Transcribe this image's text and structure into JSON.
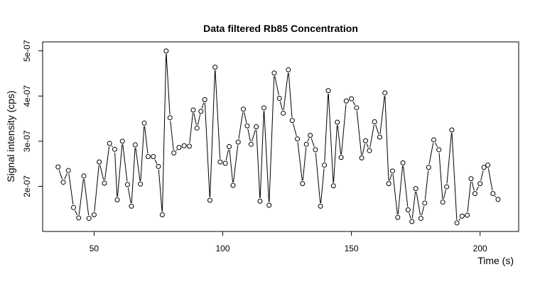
{
  "chart_data": {
    "type": "line",
    "title": "Data filtered Rb85 Concentration",
    "xlabel": "Time (s)",
    "ylabel": "Signal intensity (cps)",
    "xlim": [
      30,
      215
    ],
    "ylim": [
      1e-07,
      5.2e-07
    ],
    "x_ticks": [
      50,
      100,
      150,
      200
    ],
    "x_tick_labels": [
      "50",
      "100",
      "150",
      "200"
    ],
    "y_ticks": [
      2e-07,
      3e-07,
      4e-07,
      5e-07
    ],
    "y_tick_labels": [
      "2e-07",
      "3e-07",
      "4e-07",
      "5e-07"
    ],
    "grid": false,
    "series": [
      {
        "marker": "open-circle",
        "line": "segments-with-gaps",
        "points": [
          [
            36.0,
            2.43e-07
          ],
          [
            38.0,
            2.09e-07
          ],
          [
            40.0,
            2.35e-07
          ],
          [
            42.0,
            1.53e-07
          ],
          [
            44.0,
            1.3e-07
          ],
          [
            46.0,
            2.23e-07
          ],
          [
            48.0,
            1.29e-07
          ],
          [
            50.0,
            1.37e-07
          ],
          [
            52.0,
            2.54e-07
          ],
          [
            54.0,
            2.07e-07
          ],
          [
            56.0,
            2.95e-07
          ],
          [
            58.0,
            2.82e-07
          ],
          [
            59.0,
            1.7e-07
          ],
          [
            61.0,
            3e-07
          ],
          [
            63.0,
            2.04e-07
          ],
          [
            64.5,
            1.56e-07
          ],
          [
            66.0,
            2.92e-07
          ],
          [
            68.0,
            2.05e-07
          ],
          [
            69.5,
            3.4e-07
          ],
          [
            71.0,
            2.66e-07
          ],
          [
            73.0,
            2.66e-07
          ],
          [
            75.0,
            2.44e-07
          ],
          [
            76.5,
            1.37e-07
          ],
          [
            78.0,
            5e-07
          ],
          [
            79.5,
            3.52e-07
          ],
          [
            81.0,
            2.74e-07
          ],
          [
            83.0,
            2.86e-07
          ],
          [
            85.0,
            2.9e-07
          ],
          [
            87.0,
            2.89e-07
          ],
          [
            88.5,
            3.69e-07
          ],
          [
            90.0,
            3.29e-07
          ],
          [
            91.5,
            3.66e-07
          ],
          [
            93.0,
            3.92e-07
          ],
          [
            95.0,
            1.69e-07
          ],
          [
            97.0,
            4.64e-07
          ],
          [
            99.0,
            2.54e-07
          ],
          [
            101.0,
            2.51e-07
          ],
          [
            102.5,
            2.88e-07
          ],
          [
            104.0,
            2.02e-07
          ],
          [
            106.0,
            2.98e-07
          ],
          [
            108.0,
            3.71e-07
          ],
          [
            109.5,
            3.34e-07
          ],
          [
            111.0,
            2.93e-07
          ],
          [
            113.0,
            3.32e-07
          ],
          [
            114.5,
            1.67e-07
          ],
          [
            116.0,
            3.74e-07
          ],
          [
            118.0,
            1.58e-07
          ],
          [
            120.0,
            4.51e-07
          ],
          [
            122.0,
            3.95e-07
          ],
          [
            123.5,
            3.62e-07
          ],
          [
            125.5,
            4.58e-07
          ],
          [
            127.0,
            3.46e-07
          ],
          [
            129.0,
            3.05e-07
          ],
          [
            131.0,
            2.06e-07
          ],
          [
            132.5,
            2.93e-07
          ],
          [
            134.0,
            3.13e-07
          ],
          [
            136.0,
            2.81e-07
          ],
          [
            138.0,
            1.56e-07
          ],
          [
            139.5,
            2.47e-07
          ],
          [
            141.0,
            4.12e-07
          ],
          [
            143.0,
            2.01e-07
          ],
          [
            144.5,
            3.42e-07
          ],
          [
            146.0,
            2.64e-07
          ],
          [
            148.0,
            3.89e-07
          ],
          [
            150.0,
            3.94e-07
          ],
          [
            152.0,
            3.74e-07
          ],
          [
            154.0,
            2.63e-07
          ],
          [
            155.5,
            3.01e-07
          ],
          [
            157.0,
            2.79e-07
          ],
          [
            159.0,
            3.43e-07
          ],
          [
            161.0,
            3.09e-07
          ],
          [
            163.0,
            4.07e-07
          ],
          [
            164.5,
            2.06e-07
          ],
          [
            166.0,
            2.34e-07
          ],
          [
            168.0,
            1.31e-07
          ],
          [
            170.0,
            2.52e-07
          ],
          [
            172.0,
            1.48e-07
          ],
          [
            173.5,
            1.22e-07
          ],
          [
            175.0,
            1.95e-07
          ],
          [
            177.0,
            1.29e-07
          ],
          [
            178.5,
            1.63e-07
          ],
          [
            180.0,
            2.42e-07
          ],
          [
            182.0,
            3.03e-07
          ],
          [
            184.0,
            2.81e-07
          ],
          [
            185.5,
            1.65e-07
          ],
          [
            187.0,
            1.99e-07
          ],
          [
            189.0,
            3.25e-07
          ],
          [
            191.0,
            1.19e-07
          ],
          [
            193.0,
            1.34e-07
          ],
          [
            195.0,
            1.36e-07
          ],
          [
            196.5,
            2.17e-07
          ],
          [
            198.0,
            1.84e-07
          ],
          [
            200.0,
            2.06e-07
          ],
          [
            201.5,
            2.42e-07
          ],
          [
            203.0,
            2.47e-07
          ],
          [
            205.0,
            1.84e-07
          ],
          [
            207.0,
            1.71e-07
          ]
        ]
      }
    ]
  }
}
